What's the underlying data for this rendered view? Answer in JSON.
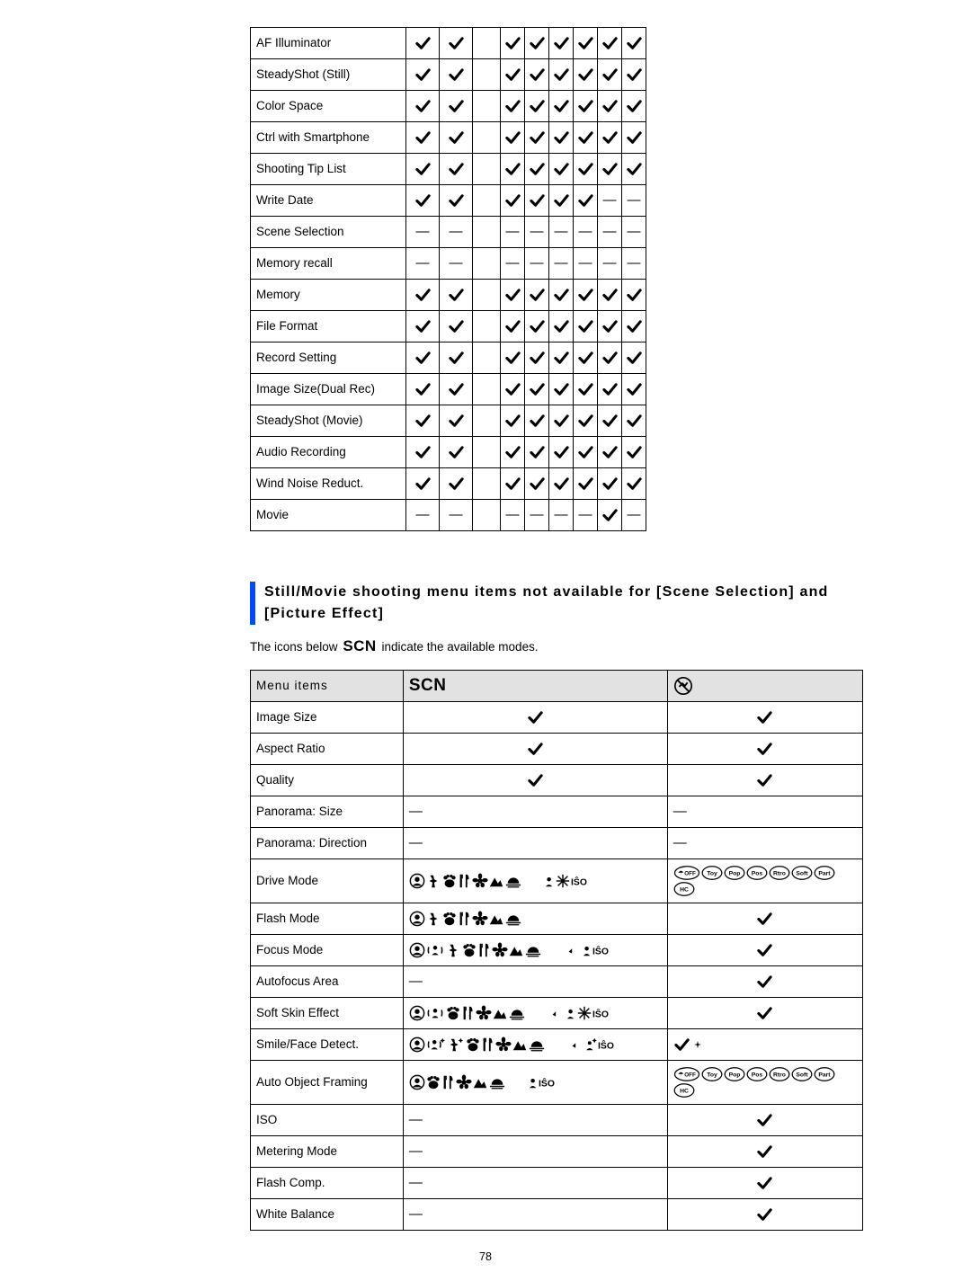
{
  "colors": {
    "accent_bar": "#0049ff",
    "border": "#000000",
    "header_bg": "#e2e2e2",
    "text": "#000000",
    "bg": "#ffffff"
  },
  "table1": {
    "columns": 8,
    "spacer_after_col": 2,
    "rows": [
      {
        "label": "AF Illuminator",
        "cells": [
          "v",
          "v",
          "v",
          "v",
          "v",
          "v",
          "v",
          "v"
        ]
      },
      {
        "label": "SteadyShot (Still)",
        "cells": [
          "v",
          "v",
          "v",
          "v",
          "v",
          "v",
          "v",
          "v"
        ]
      },
      {
        "label": "Color Space",
        "cells": [
          "v",
          "v",
          "v",
          "v",
          "v",
          "v",
          "v",
          "v"
        ]
      },
      {
        "label": "Ctrl with Smartphone",
        "cells": [
          "v",
          "v",
          "v",
          "v",
          "v",
          "v",
          "v",
          "v"
        ]
      },
      {
        "label": "Shooting Tip List",
        "cells": [
          "v",
          "v",
          "v",
          "v",
          "v",
          "v",
          "v",
          "v"
        ]
      },
      {
        "label": "Write Date",
        "cells": [
          "v",
          "v",
          "v",
          "v",
          "v",
          "v",
          "-",
          "-"
        ]
      },
      {
        "label": "Scene Selection",
        "cells": [
          "-",
          "-",
          "-",
          "-",
          "-",
          "-",
          "-",
          "-"
        ]
      },
      {
        "label": "Memory recall",
        "cells": [
          "-",
          "-",
          "-",
          "-",
          "-",
          "-",
          "-",
          "-"
        ]
      },
      {
        "label": "Memory",
        "cells": [
          "v",
          "v",
          "v",
          "v",
          "v",
          "v",
          "v",
          "v"
        ]
      },
      {
        "label": "File Format",
        "cells": [
          "v",
          "v",
          "v",
          "v",
          "v",
          "v",
          "v",
          "v"
        ]
      },
      {
        "label": "Record Setting",
        "cells": [
          "v",
          "v",
          "v",
          "v",
          "v",
          "v",
          "v",
          "v"
        ]
      },
      {
        "label": "Image Size(Dual Rec)",
        "cells": [
          "v",
          "v",
          "v",
          "v",
          "v",
          "v",
          "v",
          "v"
        ]
      },
      {
        "label": "SteadyShot (Movie)",
        "cells": [
          "v",
          "v",
          "v",
          "v",
          "v",
          "v",
          "v",
          "v"
        ]
      },
      {
        "label": "Audio Recording",
        "cells": [
          "v",
          "v",
          "v",
          "v",
          "v",
          "v",
          "v",
          "v"
        ]
      },
      {
        "label": "Wind Noise Reduct.",
        "cells": [
          "v",
          "v",
          "v",
          "v",
          "v",
          "v",
          "v",
          "v"
        ]
      },
      {
        "label": "Movie",
        "cells": [
          "-",
          "-",
          "-",
          "-",
          "-",
          "-",
          "v",
          "-"
        ]
      }
    ]
  },
  "section": {
    "heading": "Still/Movie shooting menu items not available for [Scene Selection] and [Picture Effect]",
    "note_before": "The icons below ",
    "note_scn": "SCN",
    "note_after": " indicate the available modes."
  },
  "table2": {
    "header": {
      "menu": "Menu items",
      "scn": "SCN"
    },
    "rows": [
      {
        "label": "Image Size",
        "scn": "v",
        "pe": "v"
      },
      {
        "label": "Aspect Ratio",
        "scn": "v",
        "pe": "v"
      },
      {
        "label": "Quality",
        "scn": "v",
        "pe": "v"
      },
      {
        "label": "Panorama: Size",
        "scn": "-",
        "pe": "-"
      },
      {
        "label": "Panorama: Direction",
        "scn": "-",
        "pe": "-"
      },
      {
        "label": "Drive Mode",
        "scn": "icons1",
        "pe": "oval1"
      },
      {
        "label": "Flash Mode",
        "scn": "icons2",
        "pe": "v"
      },
      {
        "label": "Focus Mode",
        "scn": "icons3",
        "pe": "v"
      },
      {
        "label": "Autofocus Area",
        "scn": "-",
        "pe": "v"
      },
      {
        "label": "Soft Skin Effect",
        "scn": "icons4",
        "pe": "v"
      },
      {
        "label": "Smile/Face Detect.",
        "scn": "icons5",
        "pe": "vstar"
      },
      {
        "label": "Auto Object Framing",
        "scn": "icons6",
        "pe": "oval1"
      },
      {
        "label": "ISO",
        "scn": "-",
        "pe": "v"
      },
      {
        "label": "Metering Mode",
        "scn": "-",
        "pe": "v"
      },
      {
        "label": "Flash Comp.",
        "scn": "-",
        "pe": "v"
      },
      {
        "label": "White Balance",
        "scn": "-",
        "pe": "v"
      }
    ]
  },
  "page_number": "78",
  "oval_labels": [
    "OFF",
    "Toy",
    "Pop",
    "Pos",
    "Rtro",
    "Soft",
    "Part",
    "HC"
  ],
  "oval_off_prefix": "☂"
}
